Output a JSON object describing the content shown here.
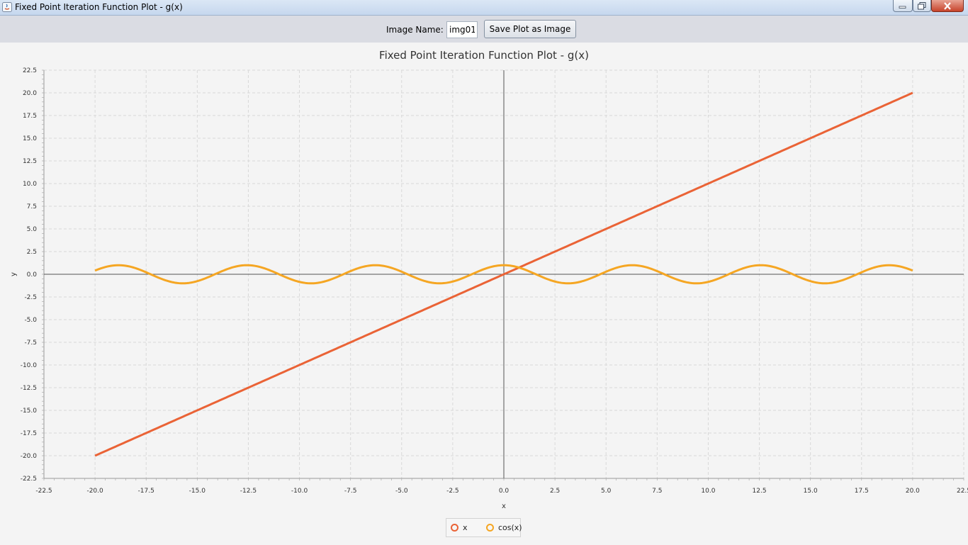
{
  "window": {
    "title": "Fixed Point Iteration Function Plot - g(x)",
    "controls": {
      "minimize": "minimize",
      "maximize": "maximize",
      "close": "close"
    }
  },
  "toolbar": {
    "image_name_label": "Image Name:",
    "image_name_value": "img01",
    "save_label": "Save Plot as Image"
  },
  "colors": {
    "series_x": "#ea6336",
    "series_cos": "#f5a623",
    "grid": "#d9d9d9",
    "axis": "#555555"
  },
  "chart_data": {
    "type": "line",
    "title": "Fixed Point Iteration Function Plot - g(x)",
    "xlabel": "x",
    "ylabel": "y",
    "xlim": [
      -22.5,
      22.5
    ],
    "ylim": [
      -22.5,
      22.5
    ],
    "x_ticks": [
      -22.5,
      -20,
      -17.5,
      -15,
      -12.5,
      -10,
      -7.5,
      -5,
      -2.5,
      0,
      2.5,
      5,
      7.5,
      10,
      12.5,
      15,
      17.5,
      20,
      22.5
    ],
    "x_tick_labels": [
      "-22.5",
      "-20.0",
      "-17.5",
      "-15.0",
      "-12.5",
      "-10.0",
      "-7.5",
      "-5.0",
      "-2.5",
      "0.0",
      "2.5",
      "5.0",
      "7.5",
      "10.0",
      "12.5",
      "15.0",
      "17.5",
      "20.0",
      "22.5"
    ],
    "y_ticks": [
      22.5,
      20,
      17.5,
      15,
      12.5,
      10,
      7.5,
      5,
      2.5,
      0,
      -2.5,
      -5,
      -7.5,
      -10,
      -12.5,
      -15,
      -17.5,
      -20,
      -22.5
    ],
    "y_tick_labels": [
      "22.5",
      "20.0",
      "17.5",
      "15.0",
      "12.5",
      "10.0",
      "7.5",
      "5.0",
      "2.5",
      "0.0",
      "-2.5",
      "-5.0",
      "-7.5",
      "-10.0",
      "-12.5",
      "-15.0",
      "-17.5",
      "-20.0",
      "-22.5"
    ],
    "grid": true,
    "legend_position": "bottom-center",
    "series": [
      {
        "name": "x",
        "function": "x",
        "domain": [
          -20,
          20
        ]
      },
      {
        "name": "cos(x)",
        "function": "cos(x)",
        "domain": [
          -20,
          20
        ]
      }
    ]
  }
}
